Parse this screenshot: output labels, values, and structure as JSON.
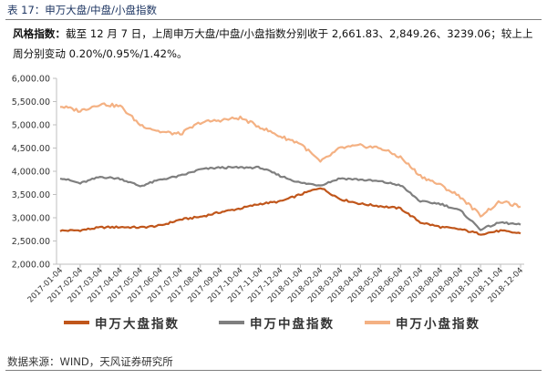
{
  "caption": "表 17：申万大盘/中盘/小盘指数",
  "summary": {
    "lead": "风格指数：",
    "text": "截至 12 月 7 日，上周申万大盘/中盘/小盘指数分别收于 2,661.83、2,849.26、3239.06；较上上周分别变动 0.20%/0.95%/1.42%。"
  },
  "source": "数据来源：WIND，天风证券研究所",
  "chart_data": {
    "type": "line",
    "title": "",
    "xlabel": "",
    "ylabel": "",
    "ylim": [
      2000,
      6000
    ],
    "ytick_labels": [
      "6,000.00",
      "5,500.00",
      "5,000.00",
      "4,500.00",
      "4,000.00",
      "3,500.00",
      "3,000.00",
      "2,500.00",
      "2,000.00"
    ],
    "ytick_values": [
      6000,
      5500,
      5000,
      4500,
      4000,
      3500,
      3000,
      2500,
      2000
    ],
    "xtick_labels": [
      "2017-01-04",
      "2017-02-04",
      "2017-03-04",
      "2017-04-04",
      "2017-05-04",
      "2017-06-04",
      "2017-07-04",
      "2017-08-04",
      "2017-09-04",
      "2017-10-04",
      "2017-11-04",
      "2017-12-04",
      "2018-01-04",
      "2018-02-04",
      "2018-03-04",
      "2018-04-04",
      "2018-05-04",
      "2018-06-04",
      "2018-07-04",
      "2018-08-04",
      "2018-09-04",
      "2018-10-04",
      "2018-11-04",
      "2018-12-04"
    ],
    "grid": false,
    "legend_position": "bottom",
    "x": [
      "2017-01",
      "2017-02",
      "2017-03",
      "2017-04",
      "2017-05",
      "2017-06",
      "2017-07",
      "2017-08",
      "2017-09",
      "2017-10",
      "2017-11",
      "2017-12",
      "2018-01",
      "2018-02",
      "2018-03",
      "2018-04",
      "2018-05",
      "2018-06",
      "2018-07",
      "2018-08",
      "2018-09",
      "2018-10",
      "2018-11",
      "2018-12"
    ],
    "series": [
      {
        "name": "申万大盘指数",
        "color": "#c0561b",
        "values": [
          2720,
          2730,
          2790,
          2800,
          2790,
          2830,
          2960,
          3020,
          3120,
          3200,
          3300,
          3350,
          3500,
          3650,
          3400,
          3300,
          3250,
          3200,
          2900,
          2800,
          2750,
          2650,
          2720,
          2662
        ]
      },
      {
        "name": "申万中盘指数",
        "color": "#7f7f7f",
        "values": [
          3860,
          3740,
          3880,
          3840,
          3680,
          3820,
          3900,
          4040,
          4080,
          4080,
          4080,
          3900,
          3750,
          3700,
          3850,
          3820,
          3780,
          3700,
          3350,
          3300,
          3150,
          2750,
          2900,
          2849
        ]
      },
      {
        "name": "申万小盘指数",
        "color": "#f4b183",
        "values": [
          5400,
          5300,
          5450,
          5400,
          5000,
          4850,
          4800,
          5050,
          5100,
          5150,
          4950,
          4750,
          4600,
          4200,
          4500,
          4550,
          4500,
          4300,
          3900,
          3700,
          3450,
          3050,
          3350,
          3239
        ]
      }
    ]
  }
}
